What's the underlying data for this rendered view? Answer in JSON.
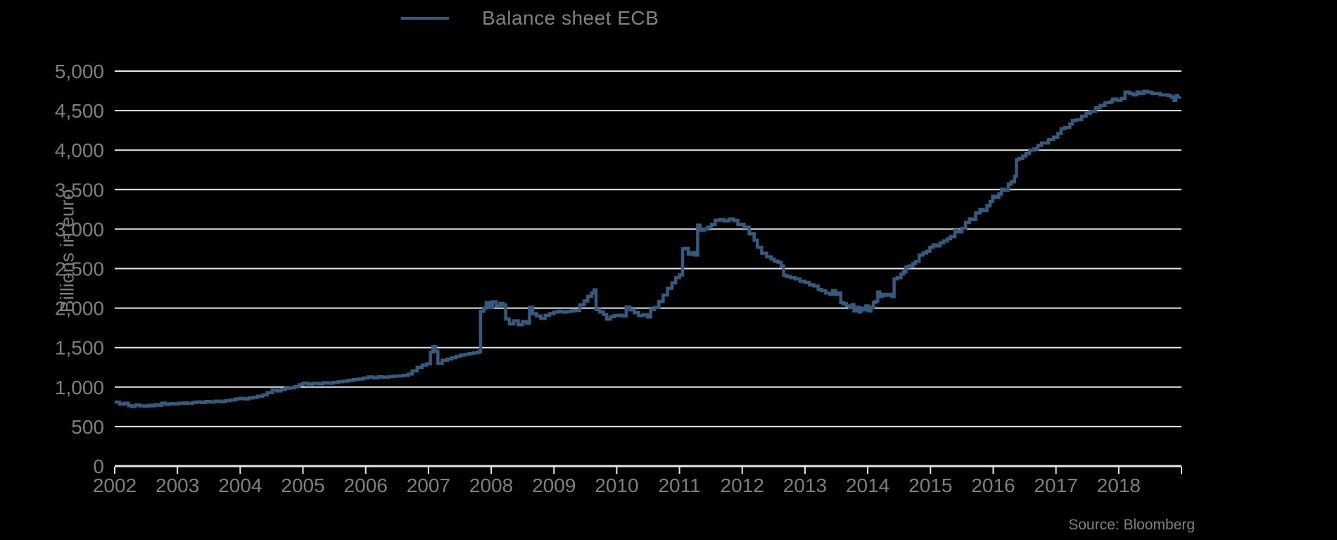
{
  "chart_data": {
    "type": "line",
    "title": "Balance sheet ECB",
    "ylabel": "Billions in euro",
    "xlabel": "",
    "source": "Source: Bloomberg",
    "legend_position": "top-center",
    "grid": true,
    "xlim": [
      2002,
      2019
    ],
    "ylim": [
      0,
      5000
    ],
    "x_ticks": [
      2002,
      2003,
      2004,
      2005,
      2006,
      2007,
      2008,
      2009,
      2010,
      2011,
      2012,
      2013,
      2014,
      2015,
      2016,
      2017,
      2018
    ],
    "y_ticks": [
      0,
      500,
      1000,
      1500,
      2000,
      2500,
      3000,
      3500,
      4000,
      4500,
      5000
    ],
    "y_tick_labels": [
      "0",
      "500",
      "1,000",
      "1,500",
      "2,000",
      "2,500",
      "3,000",
      "3,500",
      "4,000",
      "4,500",
      "5,000"
    ],
    "colors": {
      "background": "#000000",
      "line": "#355a7d",
      "grid": "#e6e6e6",
      "axis": "#e6e6e6",
      "tick_text": "#7f7f7f",
      "legend_text": "#808080"
    },
    "series": [
      {
        "name": "Balance sheet ECB",
        "interpolation": "step-after",
        "points": [
          [
            2002.0,
            810
          ],
          [
            2002.08,
            785
          ],
          [
            2002.16,
            795
          ],
          [
            2002.22,
            765
          ],
          [
            2002.27,
            753
          ],
          [
            2002.33,
            775
          ],
          [
            2002.4,
            762
          ],
          [
            2002.47,
            758
          ],
          [
            2002.53,
            770
          ],
          [
            2002.58,
            762
          ],
          [
            2002.64,
            778
          ],
          [
            2002.7,
            768
          ],
          [
            2002.75,
            797
          ],
          [
            2002.81,
            782
          ],
          [
            2002.88,
            790
          ],
          [
            2002.95,
            786
          ],
          [
            2003.02,
            795
          ],
          [
            2003.1,
            800
          ],
          [
            2003.16,
            792
          ],
          [
            2003.24,
            806
          ],
          [
            2003.31,
            812
          ],
          [
            2003.38,
            804
          ],
          [
            2003.45,
            818
          ],
          [
            2003.52,
            810
          ],
          [
            2003.6,
            822
          ],
          [
            2003.68,
            815
          ],
          [
            2003.76,
            828
          ],
          [
            2003.84,
            835
          ],
          [
            2003.92,
            850
          ],
          [
            2003.99,
            857
          ],
          [
            2004.06,
            850
          ],
          [
            2004.14,
            862
          ],
          [
            2004.21,
            870
          ],
          [
            2004.28,
            885
          ],
          [
            2004.36,
            900
          ],
          [
            2004.43,
            930
          ],
          [
            2004.51,
            965
          ],
          [
            2004.58,
            950
          ],
          [
            2004.65,
            970
          ],
          [
            2004.72,
            985
          ],
          [
            2004.8,
            990
          ],
          [
            2004.87,
            1005
          ],
          [
            2004.94,
            1030
          ],
          [
            2005.0,
            1050
          ],
          [
            2005.08,
            1038
          ],
          [
            2005.16,
            1048
          ],
          [
            2005.24,
            1042
          ],
          [
            2005.32,
            1055
          ],
          [
            2005.4,
            1050
          ],
          [
            2005.48,
            1060
          ],
          [
            2005.56,
            1067
          ],
          [
            2005.64,
            1075
          ],
          [
            2005.72,
            1085
          ],
          [
            2005.8,
            1095
          ],
          [
            2005.88,
            1102
          ],
          [
            2005.96,
            1115
          ],
          [
            2006.04,
            1128
          ],
          [
            2006.12,
            1118
          ],
          [
            2006.2,
            1130
          ],
          [
            2006.28,
            1124
          ],
          [
            2006.36,
            1132
          ],
          [
            2006.44,
            1138
          ],
          [
            2006.52,
            1142
          ],
          [
            2006.6,
            1150
          ],
          [
            2006.68,
            1165
          ],
          [
            2006.74,
            1205
          ],
          [
            2006.82,
            1250
          ],
          [
            2006.9,
            1278
          ],
          [
            2006.97,
            1295
          ],
          [
            2007.03,
            1440
          ],
          [
            2007.07,
            1513
          ],
          [
            2007.11,
            1455
          ],
          [
            2007.15,
            1300
          ],
          [
            2007.22,
            1340
          ],
          [
            2007.3,
            1355
          ],
          [
            2007.37,
            1372
          ],
          [
            2007.44,
            1390
          ],
          [
            2007.51,
            1405
          ],
          [
            2007.58,
            1415
          ],
          [
            2007.65,
            1425
          ],
          [
            2007.72,
            1435
          ],
          [
            2007.79,
            1445
          ],
          [
            2007.83,
            1960
          ],
          [
            2007.88,
            2000
          ],
          [
            2007.92,
            2070
          ],
          [
            2007.97,
            2010
          ],
          [
            2008.02,
            2080
          ],
          [
            2008.08,
            2025
          ],
          [
            2008.14,
            2060
          ],
          [
            2008.19,
            2040
          ],
          [
            2008.23,
            1860
          ],
          [
            2008.29,
            1800
          ],
          [
            2008.36,
            1840
          ],
          [
            2008.43,
            1790
          ],
          [
            2008.5,
            1830
          ],
          [
            2008.56,
            1808
          ],
          [
            2008.61,
            2010
          ],
          [
            2008.66,
            1930
          ],
          [
            2008.72,
            1900
          ],
          [
            2008.79,
            1870
          ],
          [
            2008.86,
            1908
          ],
          [
            2008.93,
            1930
          ],
          [
            2009.0,
            1950
          ],
          [
            2009.07,
            1960
          ],
          [
            2009.14,
            1948
          ],
          [
            2009.21,
            1958
          ],
          [
            2009.28,
            1965
          ],
          [
            2009.34,
            1970
          ],
          [
            2009.41,
            2040
          ],
          [
            2009.48,
            2090
          ],
          [
            2009.54,
            2150
          ],
          [
            2009.6,
            2190
          ],
          [
            2009.64,
            2230
          ],
          [
            2009.67,
            1980
          ],
          [
            2009.73,
            1950
          ],
          [
            2009.79,
            1918
          ],
          [
            2009.84,
            1860
          ],
          [
            2009.9,
            1890
          ],
          [
            2009.96,
            1905
          ],
          [
            2010.03,
            1910
          ],
          [
            2010.09,
            1898
          ],
          [
            2010.15,
            2015
          ],
          [
            2010.21,
            1978
          ],
          [
            2010.28,
            1940
          ],
          [
            2010.35,
            1905
          ],
          [
            2010.42,
            1915
          ],
          [
            2010.49,
            1888
          ],
          [
            2010.54,
            1980
          ],
          [
            2010.6,
            2008
          ],
          [
            2010.67,
            2085
          ],
          [
            2010.74,
            2165
          ],
          [
            2010.81,
            2250
          ],
          [
            2010.88,
            2320
          ],
          [
            2010.94,
            2385
          ],
          [
            2011.0,
            2420
          ],
          [
            2011.05,
            2750
          ],
          [
            2011.09,
            2755
          ],
          [
            2011.14,
            2680
          ],
          [
            2011.19,
            2702
          ],
          [
            2011.24,
            2672
          ],
          [
            2011.29,
            3050
          ],
          [
            2011.33,
            2985
          ],
          [
            2011.39,
            3000
          ],
          [
            2011.45,
            3025
          ],
          [
            2011.51,
            3060
          ],
          [
            2011.57,
            3112
          ],
          [
            2011.64,
            3120
          ],
          [
            2011.71,
            3103
          ],
          [
            2011.79,
            3128
          ],
          [
            2011.86,
            3110
          ],
          [
            2011.93,
            3058
          ],
          [
            2012.03,
            3025
          ],
          [
            2012.11,
            2940
          ],
          [
            2012.19,
            2860
          ],
          [
            2012.24,
            2770
          ],
          [
            2012.31,
            2695
          ],
          [
            2012.39,
            2650
          ],
          [
            2012.46,
            2620
          ],
          [
            2012.51,
            2595
          ],
          [
            2012.57,
            2580
          ],
          [
            2012.62,
            2535
          ],
          [
            2012.66,
            2415
          ],
          [
            2012.71,
            2400
          ],
          [
            2012.77,
            2385
          ],
          [
            2012.84,
            2370
          ],
          [
            2012.92,
            2340
          ],
          [
            2013.0,
            2325
          ],
          [
            2013.07,
            2295
          ],
          [
            2013.14,
            2280
          ],
          [
            2013.21,
            2235
          ],
          [
            2013.26,
            2222
          ],
          [
            2013.33,
            2190
          ],
          [
            2013.4,
            2175
          ],
          [
            2013.44,
            2222
          ],
          [
            2013.49,
            2175
          ],
          [
            2013.54,
            2190
          ],
          [
            2013.57,
            2070
          ],
          [
            2013.61,
            2055
          ],
          [
            2013.66,
            2028
          ],
          [
            2013.71,
            2010
          ],
          [
            2013.75,
            2045
          ],
          [
            2013.78,
            1965
          ],
          [
            2013.82,
            2010
          ],
          [
            2013.86,
            1950
          ],
          [
            2013.89,
            2000
          ],
          [
            2013.93,
            1978
          ],
          [
            2013.97,
            2028
          ],
          [
            2014.01,
            1965
          ],
          [
            2014.05,
            2010
          ],
          [
            2014.09,
            2070
          ],
          [
            2014.12,
            2085
          ],
          [
            2014.16,
            2204
          ],
          [
            2014.19,
            2145
          ],
          [
            2014.23,
            2175
          ],
          [
            2014.27,
            2160
          ],
          [
            2014.32,
            2175
          ],
          [
            2014.38,
            2145
          ],
          [
            2014.42,
            2370
          ],
          [
            2014.47,
            2385
          ],
          [
            2014.53,
            2430
          ],
          [
            2014.57,
            2457
          ],
          [
            2014.61,
            2520
          ],
          [
            2014.66,
            2535
          ],
          [
            2014.72,
            2565
          ],
          [
            2014.76,
            2590
          ],
          [
            2014.82,
            2670
          ],
          [
            2014.88,
            2697
          ],
          [
            2014.94,
            2720
          ],
          [
            2014.99,
            2770
          ],
          [
            2015.04,
            2800
          ],
          [
            2015.09,
            2787
          ],
          [
            2015.15,
            2825
          ],
          [
            2015.21,
            2850
          ],
          [
            2015.27,
            2878
          ],
          [
            2015.32,
            2905
          ],
          [
            2015.39,
            2985
          ],
          [
            2015.43,
            2965
          ],
          [
            2015.5,
            3010
          ],
          [
            2015.56,
            3085
          ],
          [
            2015.62,
            3130
          ],
          [
            2015.66,
            3120
          ],
          [
            2015.72,
            3205
          ],
          [
            2015.79,
            3250
          ],
          [
            2015.84,
            3235
          ],
          [
            2015.9,
            3295
          ],
          [
            2015.95,
            3350
          ],
          [
            2015.99,
            3415
          ],
          [
            2016.04,
            3400
          ],
          [
            2016.09,
            3445
          ],
          [
            2016.13,
            3505
          ],
          [
            2016.18,
            3490
          ],
          [
            2016.24,
            3570
          ],
          [
            2016.29,
            3600
          ],
          [
            2016.34,
            3670
          ],
          [
            2016.37,
            3880
          ],
          [
            2016.41,
            3895
          ],
          [
            2016.47,
            3925
          ],
          [
            2016.52,
            3955
          ],
          [
            2016.58,
            4000
          ],
          [
            2016.65,
            4015
          ],
          [
            2016.71,
            4060
          ],
          [
            2016.77,
            4090
          ],
          [
            2016.88,
            4135
          ],
          [
            2016.96,
            4165
          ],
          [
            2017.03,
            4210
          ],
          [
            2017.08,
            4270
          ],
          [
            2017.14,
            4285
          ],
          [
            2017.22,
            4330
          ],
          [
            2017.26,
            4375
          ],
          [
            2017.33,
            4385
          ],
          [
            2017.41,
            4430
          ],
          [
            2017.48,
            4465
          ],
          [
            2017.55,
            4490
          ],
          [
            2017.63,
            4535
          ],
          [
            2017.7,
            4565
          ],
          [
            2017.78,
            4600
          ],
          [
            2017.86,
            4610
          ],
          [
            2017.9,
            4645
          ],
          [
            2017.97,
            4630
          ],
          [
            2018.04,
            4655
          ],
          [
            2018.1,
            4735
          ],
          [
            2018.17,
            4717
          ],
          [
            2018.23,
            4700
          ],
          [
            2018.29,
            4735
          ],
          [
            2018.34,
            4717
          ],
          [
            2018.4,
            4745
          ],
          [
            2018.46,
            4735
          ],
          [
            2018.53,
            4717
          ],
          [
            2018.6,
            4717
          ],
          [
            2018.66,
            4700
          ],
          [
            2018.72,
            4700
          ],
          [
            2018.78,
            4690
          ],
          [
            2018.83,
            4673
          ],
          [
            2018.88,
            4628
          ],
          [
            2018.91,
            4690
          ],
          [
            2018.94,
            4673
          ],
          [
            2018.97,
            4680
          ]
        ]
      }
    ]
  }
}
